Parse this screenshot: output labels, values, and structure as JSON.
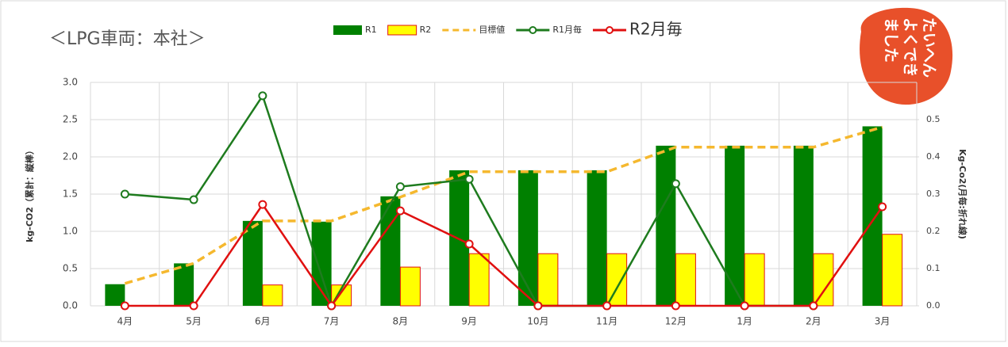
{
  "chart_data": {
    "type": "bar",
    "title": "＜LPG車両：本社＞",
    "y_label": "kg-CO2（累計：縦棒）",
    "y2_label": "Kg-Co2(月毎:折れ線)",
    "stamp": [
      "たいへん",
      "よくでき",
      "ました"
    ],
    "categories": [
      "4月",
      "5月",
      "6月",
      "7月",
      "8月",
      "9月",
      "10月",
      "11月",
      "12月",
      "1月",
      "2月",
      "3月"
    ],
    "series": [
      {
        "name": "R1",
        "style": "bar",
        "color": "#008000",
        "values": [
          0.29,
          0.57,
          1.14,
          1.13,
          1.47,
          1.82,
          1.82,
          1.82,
          2.15,
          2.15,
          2.15,
          2.41
        ]
      },
      {
        "name": "R2",
        "style": "bar",
        "color": "#ffff00",
        "values": [
          0,
          0,
          0.28,
          0.28,
          0.52,
          0.7,
          0.7,
          0.7,
          0.7,
          0.7,
          0.7,
          0.96
        ]
      },
      {
        "name": "目標値",
        "style": "dashed",
        "color": "#f5b82e",
        "values": [
          0.3,
          0.57,
          1.14,
          1.14,
          1.46,
          1.8,
          1.8,
          1.8,
          2.13,
          2.13,
          2.13,
          2.4
        ]
      },
      {
        "name": "R1月毎",
        "style": "line",
        "axis": "y2",
        "color": "#1e7b1e",
        "values": [
          0.3,
          0.285,
          0.564,
          0,
          0.32,
          0.34,
          0,
          0,
          0.328,
          0,
          0,
          null
        ]
      },
      {
        "name": "R2月毎",
        "style": "line",
        "axis": "y2",
        "color": "#e01010",
        "values": [
          0,
          0,
          0.272,
          0,
          0.255,
          0.166,
          0,
          0,
          0,
          0,
          0,
          0.266
        ]
      }
    ],
    "ylim": [
      0,
      3
    ],
    "yticks": [
      {
        "value": 0,
        "label": "0.0"
      },
      0.5,
      {
        "value": 1,
        "label": "1.0"
      },
      1.5,
      {
        "value": 2,
        "label": "2.0"
      },
      2.5,
      {
        "value": 3,
        "label": "3.0"
      }
    ],
    "y2lim": [
      0,
      0.6
    ],
    "y2ticks": [
      {
        "value": 0,
        "label": "0.0"
      },
      0.1,
      0.2,
      0.3,
      0.4,
      0.5
    ],
    "grid": true
  }
}
